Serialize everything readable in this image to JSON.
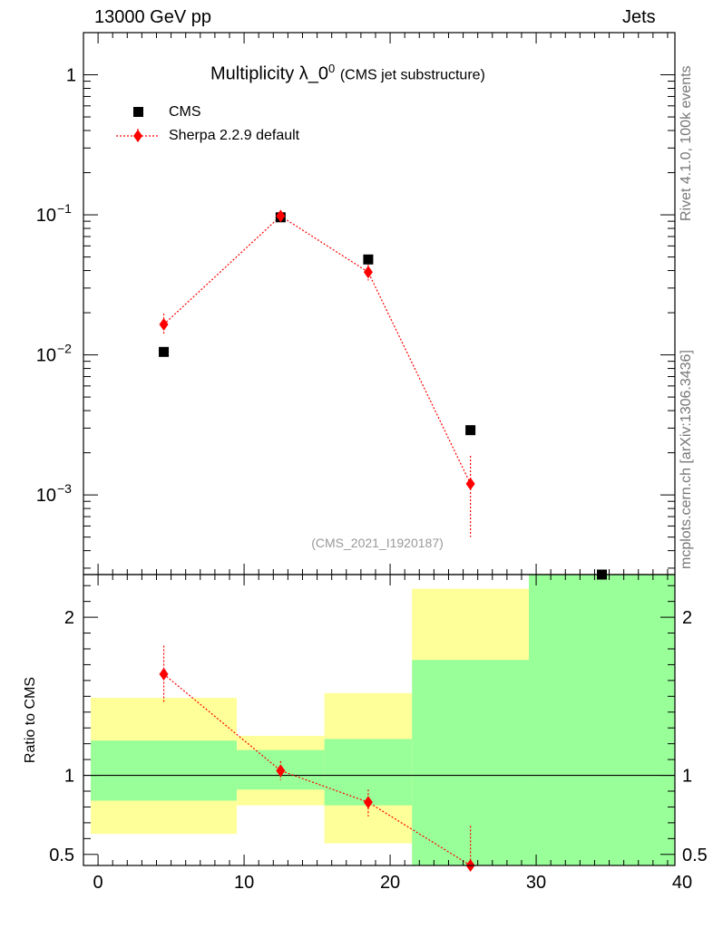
{
  "header": {
    "left": "13000 GeV pp",
    "right": "Jets"
  },
  "side_text": {
    "rivet": "Rivet 4.1.0,  100k events",
    "mcplots": "mcplots.cern.ch [arXiv:1306.3436]"
  },
  "title": {
    "main": "Multiplicity λ_0",
    "sup": "0",
    "sub": "(CMS jet substructure)"
  },
  "analysis_label": "(CMS_2021_I1920187)",
  "legend": [
    {
      "label": "CMS",
      "color": "#000000",
      "marker": "square"
    },
    {
      "label": "Sherpa 2.2.9 default",
      "color": "#ff0000",
      "marker": "diamond",
      "line": "dotted"
    }
  ],
  "colors": {
    "band_inner": "#99ff99",
    "band_outer": "#ffff99",
    "mc": "#ff0000",
    "data": "#000000"
  },
  "chart_data": [
    {
      "type": "scatter",
      "panel": "main",
      "yscale": "log",
      "xlim": [
        -1,
        39.5
      ],
      "ylim": [
        0.00027,
        2.0
      ],
      "y_ticks": [
        {
          "value": 1,
          "label": "1"
        },
        {
          "value": 0.1,
          "label": "10",
          "exp": "−1"
        },
        {
          "value": 0.01,
          "label": "10",
          "exp": "−2"
        },
        {
          "value": 0.001,
          "label": "10",
          "exp": "−3"
        }
      ],
      "series": [
        {
          "name": "CMS",
          "x": [
            4.5,
            12.5,
            18.5,
            25.5,
            34.5
          ],
          "values": [
            0.0105,
            0.096,
            0.048,
            0.0029,
            0.00026
          ]
        },
        {
          "name": "Sherpa 2.2.9 default",
          "x": [
            4.5,
            12.5,
            18.5,
            25.5
          ],
          "values": [
            0.0165,
            0.098,
            0.039,
            0.0012
          ],
          "err_up": [
            0.0197,
            0.106,
            0.044,
            0.0019
          ],
          "err_down": [
            0.0138,
            0.09,
            0.034,
            0.0005
          ]
        }
      ]
    },
    {
      "type": "scatter",
      "panel": "ratio",
      "ylabel": "Ratio to CMS",
      "xlim": [
        -1,
        39.5
      ],
      "ylim": [
        0.43,
        2.27
      ],
      "y_ticks": [
        {
          "value": 2,
          "label": "2"
        },
        {
          "value": 1,
          "label": "1"
        },
        {
          "value": 0.5,
          "label": "0.5"
        }
      ],
      "x_ticks": [
        0,
        10,
        20,
        30,
        40
      ],
      "data_bands": [
        {
          "x0": -0.5,
          "x1": 9.5,
          "inner": [
            0.84,
            1.22
          ],
          "outer": [
            0.63,
            1.49
          ]
        },
        {
          "x0": 9.5,
          "x1": 15.5,
          "inner": [
            0.91,
            1.16
          ],
          "outer": [
            0.81,
            1.25
          ]
        },
        {
          "x0": 15.5,
          "x1": 21.5,
          "inner": [
            0.81,
            1.23
          ],
          "outer": [
            0.57,
            1.52
          ]
        },
        {
          "x0": 21.5,
          "x1": 29.5,
          "inner": [
            0.43,
            1.73
          ],
          "outer": [
            0.43,
            2.18
          ]
        },
        {
          "x0": 29.5,
          "x1": 39.5,
          "inner": [
            0.43,
            2.27
          ],
          "outer": [
            0.43,
            2.27
          ]
        }
      ],
      "series": [
        {
          "name": "Sherpa 2.2.9 default",
          "x": [
            4.5,
            12.5,
            18.5,
            25.5
          ],
          "values": [
            1.64,
            1.03,
            0.83,
            0.36
          ],
          "err_up": [
            1.82,
            1.09,
            0.91,
            0.68
          ],
          "err_down": [
            1.46,
            0.97,
            0.74,
            0.36
          ]
        }
      ]
    }
  ]
}
